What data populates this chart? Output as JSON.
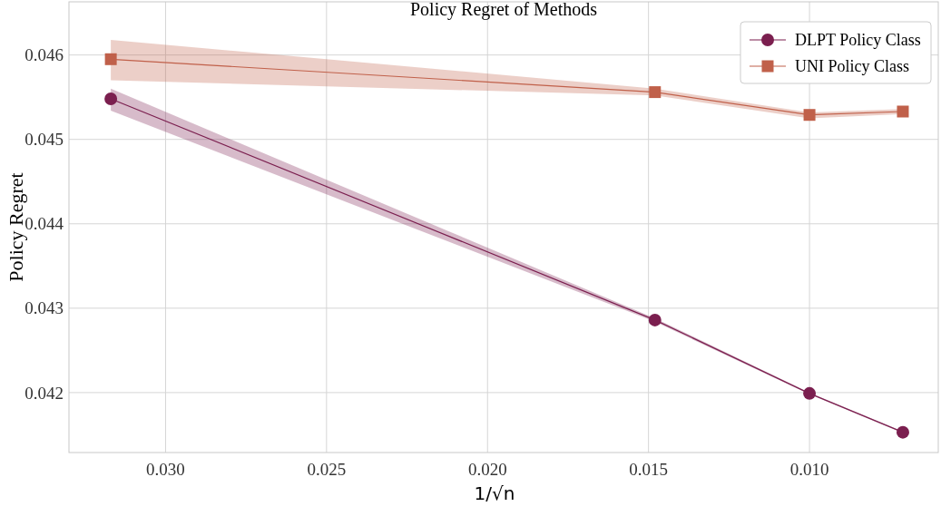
{
  "chart_data": {
    "type": "line",
    "title": "Policy Regret of Methods",
    "xlabel": "1/√n",
    "ylabel": "Policy Regret",
    "x": [
      0.0317,
      0.0148,
      0.01,
      0.0071
    ],
    "xlim": [
      0.033,
      0.006
    ],
    "xticks": [
      {
        "value": 0.03,
        "label": "0.030"
      },
      0.025,
      {
        "value": 0.02,
        "label": "0.020"
      },
      0.015,
      {
        "value": 0.01,
        "label": "0.010"
      }
    ],
    "ylim": [
      0.04129,
      0.04663
    ],
    "yticks": [
      {
        "value": 0.042,
        "label": "0.042"
      },
      0.043,
      0.044,
      0.045,
      {
        "value": 0.046,
        "label": "0.046"
      }
    ],
    "grid": true,
    "legend": "top right",
    "line_style": "solid",
    "series": [
      {
        "name": "DLPT Policy Class",
        "color": "#7b1f4f",
        "marker": "circle",
        "values": [
          0.04548,
          0.04286,
          0.04199,
          0.04153
        ],
        "lower": [
          0.04534,
          0.04284,
          0.04198,
          0.04152
        ],
        "upper": [
          0.0456,
          0.04288,
          0.042,
          0.04154
        ]
      },
      {
        "name": "UNI Policy Class",
        "color": "#c0604a",
        "marker": "square",
        "values": [
          0.04595,
          0.04556,
          0.04529,
          0.04533
        ],
        "lower": [
          0.0457,
          0.04552,
          0.04525,
          0.0453
        ],
        "upper": [
          0.04618,
          0.0456,
          0.04532,
          0.04536
        ]
      }
    ]
  }
}
